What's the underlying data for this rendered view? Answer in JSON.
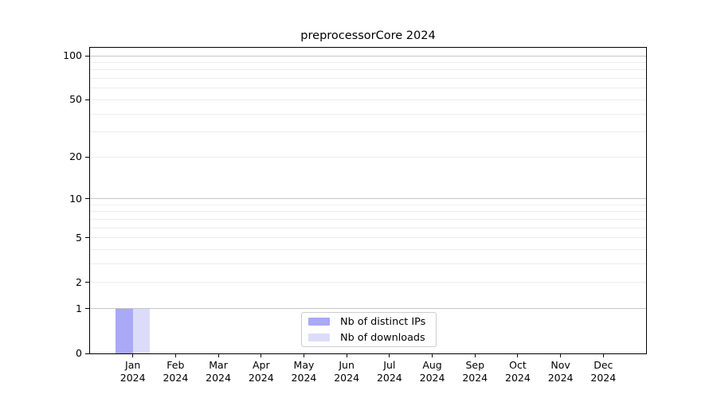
{
  "chart_data": {
    "type": "bar",
    "title": "preprocessorCore 2024",
    "categories": [
      "Jan 2024",
      "Feb 2024",
      "Mar 2024",
      "Apr 2024",
      "May 2024",
      "Jun 2024",
      "Jul 2024",
      "Aug 2024",
      "Sep 2024",
      "Oct 2024",
      "Nov 2024",
      "Dec 2024"
    ],
    "series": [
      {
        "name": "Nb of distinct IPs",
        "color": "#a9a9f7",
        "values": [
          1,
          0,
          0,
          0,
          0,
          0,
          0,
          0,
          0,
          0,
          0,
          0
        ]
      },
      {
        "name": "Nb of downloads",
        "color": "#dcdcfa",
        "values": [
          1,
          0,
          0,
          0,
          0,
          0,
          0,
          0,
          0,
          0,
          0,
          0
        ]
      }
    ],
    "yscale": "log1p",
    "ylim": [
      0,
      113
    ],
    "y_ticks": [
      0,
      1,
      2,
      5,
      10,
      20,
      50,
      100
    ],
    "y_gridlines_major": [
      1,
      10,
      100
    ],
    "y_gridlines_minor": [
      2,
      3,
      4,
      5,
      6,
      7,
      8,
      9,
      20,
      30,
      40,
      50,
      60,
      70,
      80,
      90
    ],
    "grid": "on",
    "legend_position": "lower center"
  }
}
